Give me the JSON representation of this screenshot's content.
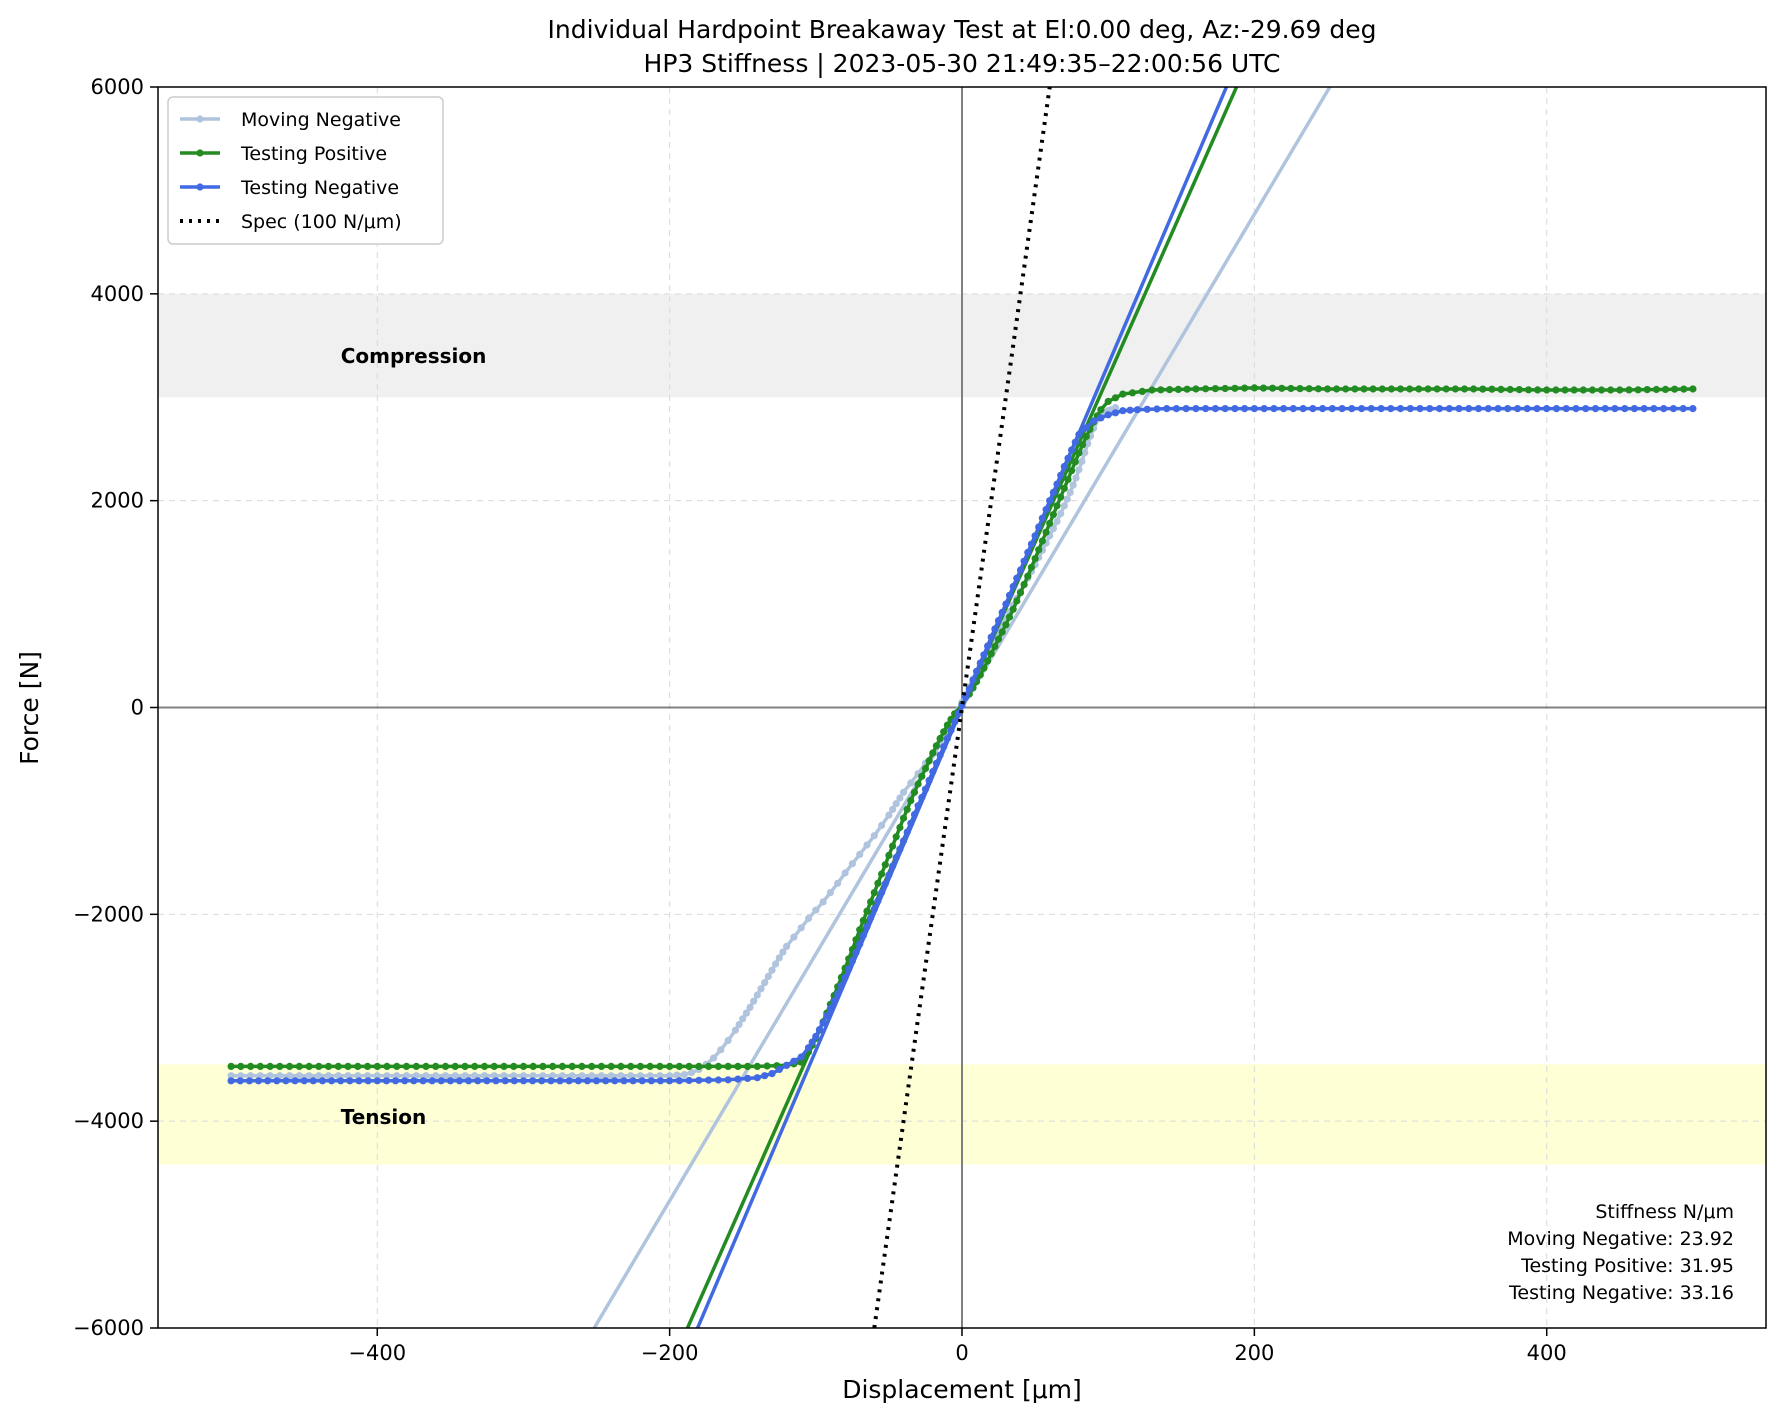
{
  "chart_data": {
    "type": "line",
    "title": "Individual Hardpoint Breakaway Test at El:0.00 deg, Az:-29.69 deg",
    "subtitle": "HP3 Stiffness | 2023-05-30 21:49:35–22:00:56 UTC",
    "xlabel": "Displacement [μm]",
    "ylabel": "Force [N]",
    "xlim": [
      -550,
      550
    ],
    "ylim": [
      -6000,
      6000
    ],
    "xticks": [
      -400,
      -200,
      0,
      200,
      400
    ],
    "yticks": [
      -6000,
      -4000,
      -2000,
      0,
      2000,
      4000,
      6000
    ],
    "xtick_labels": [
      "−400",
      "−200",
      "0",
      "200",
      "400"
    ],
    "ytick_labels": [
      "−6000",
      "−4000",
      "−2000",
      "0",
      "2000",
      "4000",
      "6000"
    ],
    "grid": true,
    "legend_position": "top-left",
    "bands": [
      {
        "label": "Compression",
        "y0": 3000,
        "y1": 4000,
        "color": "#f0f0f0"
      },
      {
        "label": "Tension",
        "y0": -4420,
        "y1": -3450,
        "color": "#ffffd6"
      }
    ],
    "series": [
      {
        "name": "Moving Negative",
        "color": "#b0c4de",
        "stiffness": 23.92,
        "data": [
          [
            105,
            2900
          ],
          [
            102,
            2880
          ],
          [
            100,
            2870
          ],
          [
            97,
            2850
          ],
          [
            94,
            2800
          ],
          [
            90,
            2700
          ],
          [
            86,
            2550
          ],
          [
            82,
            2380
          ],
          [
            78,
            2220
          ],
          [
            74,
            2080
          ],
          [
            70,
            1950
          ],
          [
            65,
            1800
          ],
          [
            60,
            1660
          ],
          [
            55,
            1520
          ],
          [
            50,
            1380
          ],
          [
            45,
            1250
          ],
          [
            40,
            1120
          ],
          [
            35,
            990
          ],
          [
            30,
            860
          ],
          [
            25,
            730
          ],
          [
            20,
            600
          ],
          [
            15,
            470
          ],
          [
            10,
            350
          ],
          [
            5,
            200
          ],
          [
            0,
            50
          ],
          [
            -5,
            -100
          ],
          [
            -10,
            -230
          ],
          [
            -15,
            -350
          ],
          [
            -20,
            -450
          ],
          [
            -25,
            -540
          ],
          [
            -30,
            -640
          ],
          [
            -35,
            -730
          ],
          [
            -40,
            -820
          ],
          [
            -45,
            -930
          ],
          [
            -50,
            -1040
          ],
          [
            -55,
            -1140
          ],
          [
            -60,
            -1240
          ],
          [
            -65,
            -1330
          ],
          [
            -70,
            -1420
          ],
          [
            -75,
            -1510
          ],
          [
            -80,
            -1600
          ],
          [
            -85,
            -1700
          ],
          [
            -90,
            -1790
          ],
          [
            -95,
            -1880
          ],
          [
            -100,
            -1960
          ],
          [
            -105,
            -2040
          ],
          [
            -110,
            -2130
          ],
          [
            -115,
            -2220
          ],
          [
            -120,
            -2310
          ],
          [
            -125,
            -2420
          ],
          [
            -130,
            -2540
          ],
          [
            -135,
            -2660
          ],
          [
            -140,
            -2780
          ],
          [
            -145,
            -2900
          ],
          [
            -150,
            -3010
          ],
          [
            -155,
            -3120
          ],
          [
            -160,
            -3220
          ],
          [
            -165,
            -3310
          ],
          [
            -170,
            -3390
          ],
          [
            -175,
            -3450
          ],
          [
            -180,
            -3500
          ],
          [
            -185,
            -3530
          ],
          [
            -190,
            -3550
          ],
          [
            -200,
            -3560
          ],
          [
            -220,
            -3560
          ],
          [
            -260,
            -3560
          ],
          [
            -300,
            -3560
          ],
          [
            -340,
            -3560
          ],
          [
            -380,
            -3560
          ],
          [
            -420,
            -3560
          ],
          [
            -460,
            -3560
          ],
          [
            -500,
            -3560
          ]
        ],
        "fit": [
          [
            -251.6,
            -6000
          ],
          [
            251.6,
            6000
          ]
        ]
      },
      {
        "name": "Testing Positive",
        "color": "#228b22",
        "stiffness": 31.95,
        "data": [
          [
            -500,
            -3470
          ],
          [
            -460,
            -3470
          ],
          [
            -420,
            -3470
          ],
          [
            -380,
            -3470
          ],
          [
            -340,
            -3470
          ],
          [
            -300,
            -3470
          ],
          [
            -260,
            -3470
          ],
          [
            -220,
            -3470
          ],
          [
            -180,
            -3470
          ],
          [
            -140,
            -3470
          ],
          [
            -120,
            -3460
          ],
          [
            -110,
            -3430
          ],
          [
            -105,
            -3330
          ],
          [
            -100,
            -3200
          ],
          [
            -95,
            -3040
          ],
          [
            -90,
            -2870
          ],
          [
            -85,
            -2700
          ],
          [
            -80,
            -2520
          ],
          [
            -75,
            -2340
          ],
          [
            -70,
            -2150
          ],
          [
            -65,
            -1970
          ],
          [
            -60,
            -1790
          ],
          [
            -55,
            -1610
          ],
          [
            -50,
            -1430
          ],
          [
            -45,
            -1250
          ],
          [
            -40,
            -1070
          ],
          [
            -35,
            -900
          ],
          [
            -30,
            -740
          ],
          [
            -25,
            -590
          ],
          [
            -20,
            -440
          ],
          [
            -15,
            -300
          ],
          [
            -10,
            -170
          ],
          [
            -5,
            -60
          ],
          [
            0,
            30
          ],
          [
            5,
            130
          ],
          [
            10,
            250
          ],
          [
            15,
            380
          ],
          [
            20,
            520
          ],
          [
            25,
            660
          ],
          [
            30,
            800
          ],
          [
            35,
            950
          ],
          [
            40,
            1110
          ],
          [
            45,
            1270
          ],
          [
            50,
            1440
          ],
          [
            55,
            1610
          ],
          [
            60,
            1780
          ],
          [
            65,
            1950
          ],
          [
            70,
            2120
          ],
          [
            75,
            2290
          ],
          [
            80,
            2460
          ],
          [
            85,
            2620
          ],
          [
            90,
            2760
          ],
          [
            95,
            2880
          ],
          [
            100,
            2960
          ],
          [
            110,
            3030
          ],
          [
            130,
            3070
          ],
          [
            160,
            3080
          ],
          [
            200,
            3090
          ],
          [
            250,
            3080
          ],
          [
            300,
            3080
          ],
          [
            350,
            3080
          ],
          [
            400,
            3070
          ],
          [
            450,
            3070
          ],
          [
            500,
            3080
          ]
        ],
        "fit": [
          [
            -187.8,
            -6000
          ],
          [
            187.8,
            6000
          ]
        ]
      },
      {
        "name": "Testing Negative",
        "color": "#4169e1",
        "stiffness": 33.16,
        "data": [
          [
            500,
            2890
          ],
          [
            460,
            2890
          ],
          [
            420,
            2890
          ],
          [
            380,
            2890
          ],
          [
            340,
            2890
          ],
          [
            300,
            2890
          ],
          [
            260,
            2890
          ],
          [
            220,
            2890
          ],
          [
            180,
            2890
          ],
          [
            140,
            2890
          ],
          [
            120,
            2880
          ],
          [
            110,
            2870
          ],
          [
            100,
            2830
          ],
          [
            90,
            2770
          ],
          [
            80,
            2640
          ],
          [
            75,
            2490
          ],
          [
            70,
            2330
          ],
          [
            65,
            2160
          ],
          [
            60,
            2000
          ],
          [
            55,
            1830
          ],
          [
            50,
            1660
          ],
          [
            45,
            1500
          ],
          [
            40,
            1330
          ],
          [
            35,
            1170
          ],
          [
            30,
            1000
          ],
          [
            25,
            840
          ],
          [
            20,
            680
          ],
          [
            15,
            510
          ],
          [
            10,
            350
          ],
          [
            5,
            180
          ],
          [
            0,
            20
          ],
          [
            -5,
            -140
          ],
          [
            -10,
            -300
          ],
          [
            -15,
            -460
          ],
          [
            -20,
            -620
          ],
          [
            -25,
            -790
          ],
          [
            -30,
            -950
          ],
          [
            -35,
            -1120
          ],
          [
            -40,
            -1290
          ],
          [
            -45,
            -1450
          ],
          [
            -50,
            -1620
          ],
          [
            -55,
            -1790
          ],
          [
            -60,
            -1950
          ],
          [
            -65,
            -2120
          ],
          [
            -70,
            -2290
          ],
          [
            -75,
            -2450
          ],
          [
            -80,
            -2610
          ],
          [
            -85,
            -2770
          ],
          [
            -90,
            -2910
          ],
          [
            -95,
            -3050
          ],
          [
            -100,
            -3180
          ],
          [
            -105,
            -3290
          ],
          [
            -110,
            -3380
          ],
          [
            -120,
            -3460
          ],
          [
            -130,
            -3540
          ],
          [
            -140,
            -3580
          ],
          [
            -160,
            -3600
          ],
          [
            -200,
            -3610
          ],
          [
            -250,
            -3610
          ],
          [
            -300,
            -3610
          ],
          [
            -350,
            -3610
          ],
          [
            -400,
            -3610
          ],
          [
            -450,
            -3610
          ],
          [
            -500,
            -3610
          ]
        ],
        "fit": [
          [
            -180.9,
            -6000
          ],
          [
            180.9,
            6000
          ]
        ]
      },
      {
        "name": "Spec (100 N/μm)",
        "color": "#000000",
        "style": "dotted",
        "fit": [
          [
            -60,
            -6000
          ],
          [
            60,
            6000
          ]
        ]
      }
    ],
    "stats": {
      "heading": "Stiffness N/μm",
      "lines": [
        "Moving Negative:  23.92",
        "Testing Positive: 31.95",
        "Testing Negative: 33.16"
      ]
    }
  }
}
